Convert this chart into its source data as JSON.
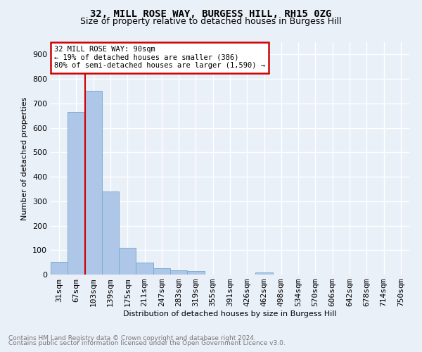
{
  "title1": "32, MILL ROSE WAY, BURGESS HILL, RH15 0ZG",
  "title2": "Size of property relative to detached houses in Burgess Hill",
  "xlabel": "Distribution of detached houses by size in Burgess Hill",
  "ylabel": "Number of detached properties",
  "footnote1": "Contains HM Land Registry data © Crown copyright and database right 2024.",
  "footnote2": "Contains public sector information licensed under the Open Government Licence v3.0.",
  "annotation_line1": "32 MILL ROSE WAY: 90sqm",
  "annotation_line2": "← 19% of detached houses are smaller (386)",
  "annotation_line3": "80% of semi-detached houses are larger (1,590) →",
  "bar_labels": [
    "31sqm",
    "67sqm",
    "103sqm",
    "139sqm",
    "175sqm",
    "211sqm",
    "247sqm",
    "283sqm",
    "319sqm",
    "355sqm",
    "391sqm",
    "426sqm",
    "462sqm",
    "498sqm",
    "534sqm",
    "570sqm",
    "606sqm",
    "642sqm",
    "678sqm",
    "714sqm",
    "750sqm"
  ],
  "bar_values": [
    52,
    665,
    750,
    340,
    108,
    50,
    25,
    18,
    13,
    0,
    0,
    0,
    8,
    0,
    0,
    0,
    0,
    0,
    0,
    0,
    0
  ],
  "bar_color": "#aec6e8",
  "bar_edge_color": "#7aaed0",
  "bg_color": "#eaf0f8",
  "grid_color": "#ffffff",
  "vline_color": "#cc0000",
  "ylim": [
    0,
    950
  ],
  "yticks": [
    0,
    100,
    200,
    300,
    400,
    500,
    600,
    700,
    800,
    900
  ],
  "title1_fontsize": 10,
  "title2_fontsize": 9,
  "footnote_color": "#777777",
  "footnote_fontsize": 6.5
}
